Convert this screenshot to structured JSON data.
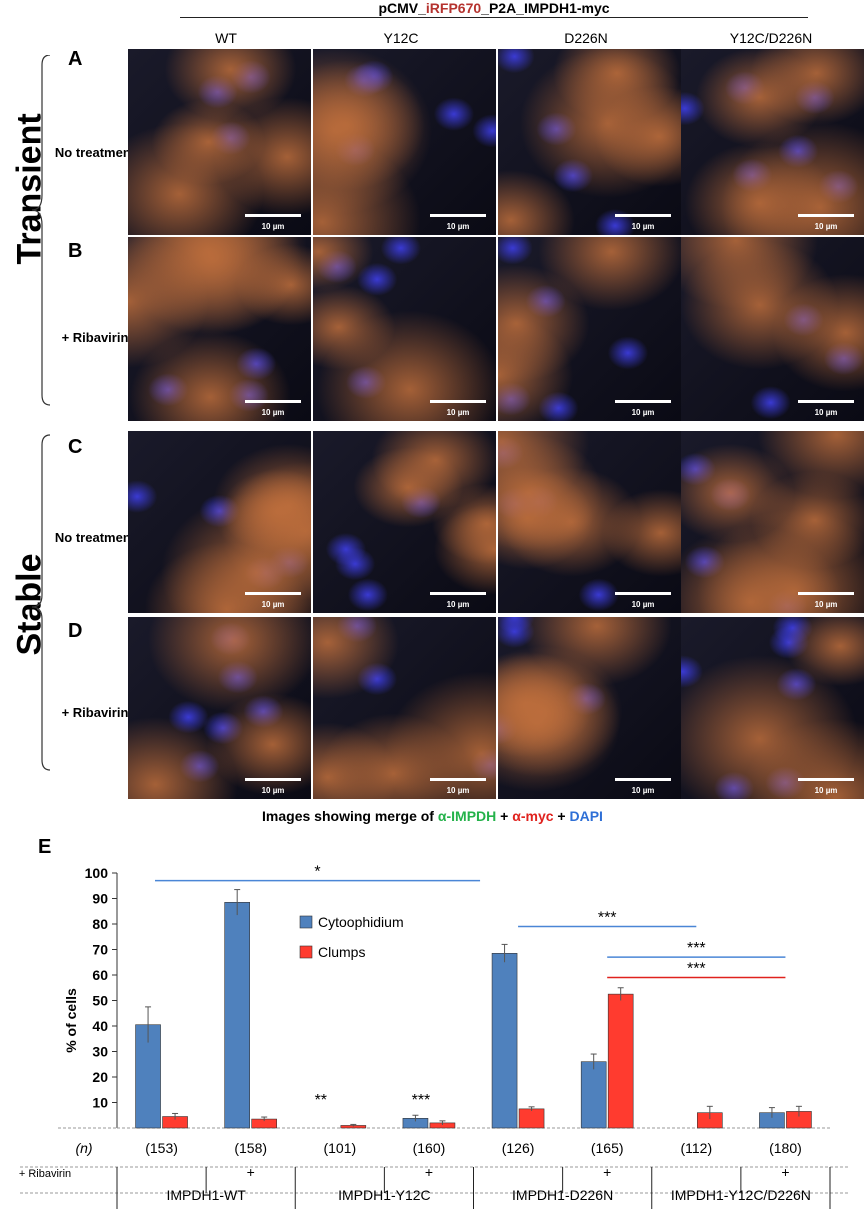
{
  "figure": {
    "construct": {
      "prefix": "pCMV_",
      "highlight": "iRFP670",
      "suffix": "_P2A_IMPDH1-myc"
    },
    "columns": [
      "WT",
      "Y12C",
      "D226N",
      "Y12C/D226N"
    ],
    "groups": [
      "Transient",
      "Stable"
    ],
    "rows": [
      {
        "letter": "A",
        "label": "No treatment"
      },
      {
        "letter": "B",
        "label": "+ Ribavirin"
      },
      {
        "letter": "C",
        "label": "No treatment"
      },
      {
        "letter": "D",
        "label": "+ Ribavirin"
      }
    ],
    "scale_bar_label": "10 µm",
    "caption": {
      "prefix": "Images showing merge of ",
      "a": "α-IMPDH",
      "sep1": " + ",
      "b": "α-myc",
      "sep2": " + ",
      "c": "DAPI"
    },
    "panel_e_letter": "E",
    "colors": {
      "cytoophidium": "#4f81bd",
      "clumps": "#ff3b2f",
      "blue_sig": "#4a86d6",
      "red_sig": "#e0221e"
    }
  },
  "chart_data": {
    "type": "bar",
    "ylabel": "% of cells",
    "ylim": [
      0,
      100
    ],
    "yticks": [
      10,
      20,
      30,
      40,
      50,
      60,
      70,
      80,
      90,
      100
    ],
    "categories": [
      "IMPDH1-WT",
      "IMPDH1-WT +",
      "IMPDH1-Y12C",
      "IMPDH1-Y12C +",
      "IMPDH1-D226N",
      "IMPDH1-D226N +",
      "IMPDH1-Y12C/D226N",
      "IMPDH1-Y12C/D226N +"
    ],
    "series": [
      {
        "name": "Cytoophidium",
        "values": [
          40.5,
          88.5,
          0,
          3.8,
          68.5,
          26,
          0,
          6
        ],
        "errors": [
          7,
          5,
          0,
          1.2,
          3.5,
          3,
          0,
          2
        ]
      },
      {
        "name": "Clumps",
        "values": [
          4.5,
          3.5,
          1,
          2,
          7.5,
          52.5,
          6,
          6.5
        ],
        "errors": [
          1.2,
          0.8,
          0.4,
          0.8,
          0.8,
          2.5,
          2.5,
          2
        ]
      }
    ],
    "n": [
      "(153)",
      "(158)",
      "(101)",
      "(160)",
      "(126)",
      "(165)",
      "(112)",
      "(180)"
    ],
    "ribavirin": [
      "",
      "+",
      "",
      "+",
      "",
      "+",
      "",
      "+"
    ],
    "n_label": "(n)",
    "ribavirin_label": "+ Ribavirin",
    "group_labels": [
      "IMPDH1-WT",
      "IMPDH1-Y12C",
      "IMPDH1-D226N",
      "IMPDH1-Y12C/D226N"
    ],
    "significance": [
      {
        "text": "*",
        "from": 0,
        "to": 4,
        "y": 97,
        "color": "#4a86d6"
      },
      {
        "text": "***",
        "from": 4,
        "to": 6,
        "y": 79,
        "color": "#4a86d6"
      },
      {
        "text": "***",
        "from": 5,
        "to": 7,
        "y": 67,
        "color": "#4a86d6"
      },
      {
        "text": "***",
        "from": 5,
        "to": 7,
        "y": 59,
        "color": "#e0221e"
      }
    ],
    "bar_annotations": [
      {
        "text": "**",
        "index": 2
      },
      {
        "text": "***",
        "index": 3
      }
    ],
    "legend": "center-left"
  }
}
